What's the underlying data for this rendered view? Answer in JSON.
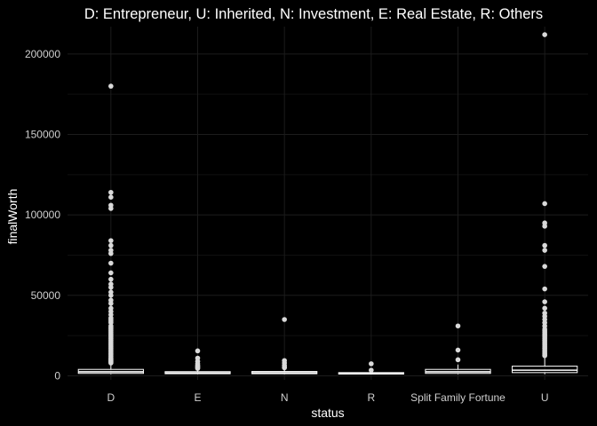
{
  "chart_data": {
    "type": "boxplot",
    "title": "D: Entrepreneur, U: Inherited, N: Investment, E: Real Estate, R: Others",
    "xlabel": "status",
    "ylabel": "finalWorth",
    "ylim": [
      -2500,
      217000
    ],
    "yticks": [
      0,
      50000,
      100000,
      150000,
      200000
    ],
    "grid": true,
    "theme": {
      "background": "#000000",
      "grid_major": "#1c1c1c",
      "grid_minor": "#101010",
      "box": "#ffffff",
      "outlier": "#d9d9d9",
      "text": "#ffffff"
    },
    "categories": [
      "D",
      "E",
      "N",
      "R",
      "Split Family Fortune",
      "U"
    ],
    "boxes": [
      {
        "category": "D",
        "min": 1000,
        "q1": 1500,
        "median": 2500,
        "q3": 4000,
        "max": 7500,
        "outliers": [
          180000,
          114000,
          111000,
          106000,
          104000,
          84000,
          81000,
          78000,
          76000,
          70000,
          64000,
          60000,
          57000,
          55000,
          52000,
          50000,
          47000,
          45000,
          42000,
          40000,
          38000,
          36000,
          35000,
          34000,
          33000,
          31000,
          30000,
          29000,
          28000,
          27000,
          26000,
          25000,
          24000,
          23000,
          22000,
          21000,
          20000,
          19000,
          18000,
          17000,
          16000,
          15000,
          14000,
          13000,
          12000,
          11000,
          10500,
          10000,
          9500,
          9000,
          8500,
          8000
        ]
      },
      {
        "category": "E",
        "min": 1000,
        "q1": 1300,
        "median": 1800,
        "q3": 2600,
        "max": 4200,
        "outliers": [
          15500,
          11000,
          9000,
          7500,
          6500,
          6000,
          5500,
          5000,
          4600
        ]
      },
      {
        "category": "N",
        "min": 1000,
        "q1": 1300,
        "median": 1900,
        "q3": 2700,
        "max": 4500,
        "outliers": [
          35000,
          9500,
          8000,
          6500,
          5500,
          5000
        ]
      },
      {
        "category": "R",
        "min": 1000,
        "q1": 1100,
        "median": 1400,
        "q3": 2000,
        "max": 2800,
        "outliers": [
          7500,
          3500
        ]
      },
      {
        "category": "Split Family Fortune",
        "min": 1000,
        "q1": 1500,
        "median": 2500,
        "q3": 4000,
        "max": 7000,
        "outliers": [
          31000,
          16000,
          10000
        ]
      },
      {
        "category": "U",
        "min": 1000,
        "q1": 2000,
        "median": 3500,
        "q3": 6000,
        "max": 12000,
        "outliers": [
          212000,
          107000,
          95000,
          93000,
          81000,
          78000,
          68000,
          54000,
          46000,
          42000,
          39000,
          37000,
          35000,
          33000,
          31000,
          29000,
          28000,
          27000,
          26000,
          25000,
          24000,
          23000,
          22000,
          21000,
          20000,
          19000,
          18000,
          17000,
          16000,
          15000,
          14000,
          13000,
          12500
        ]
      }
    ]
  }
}
